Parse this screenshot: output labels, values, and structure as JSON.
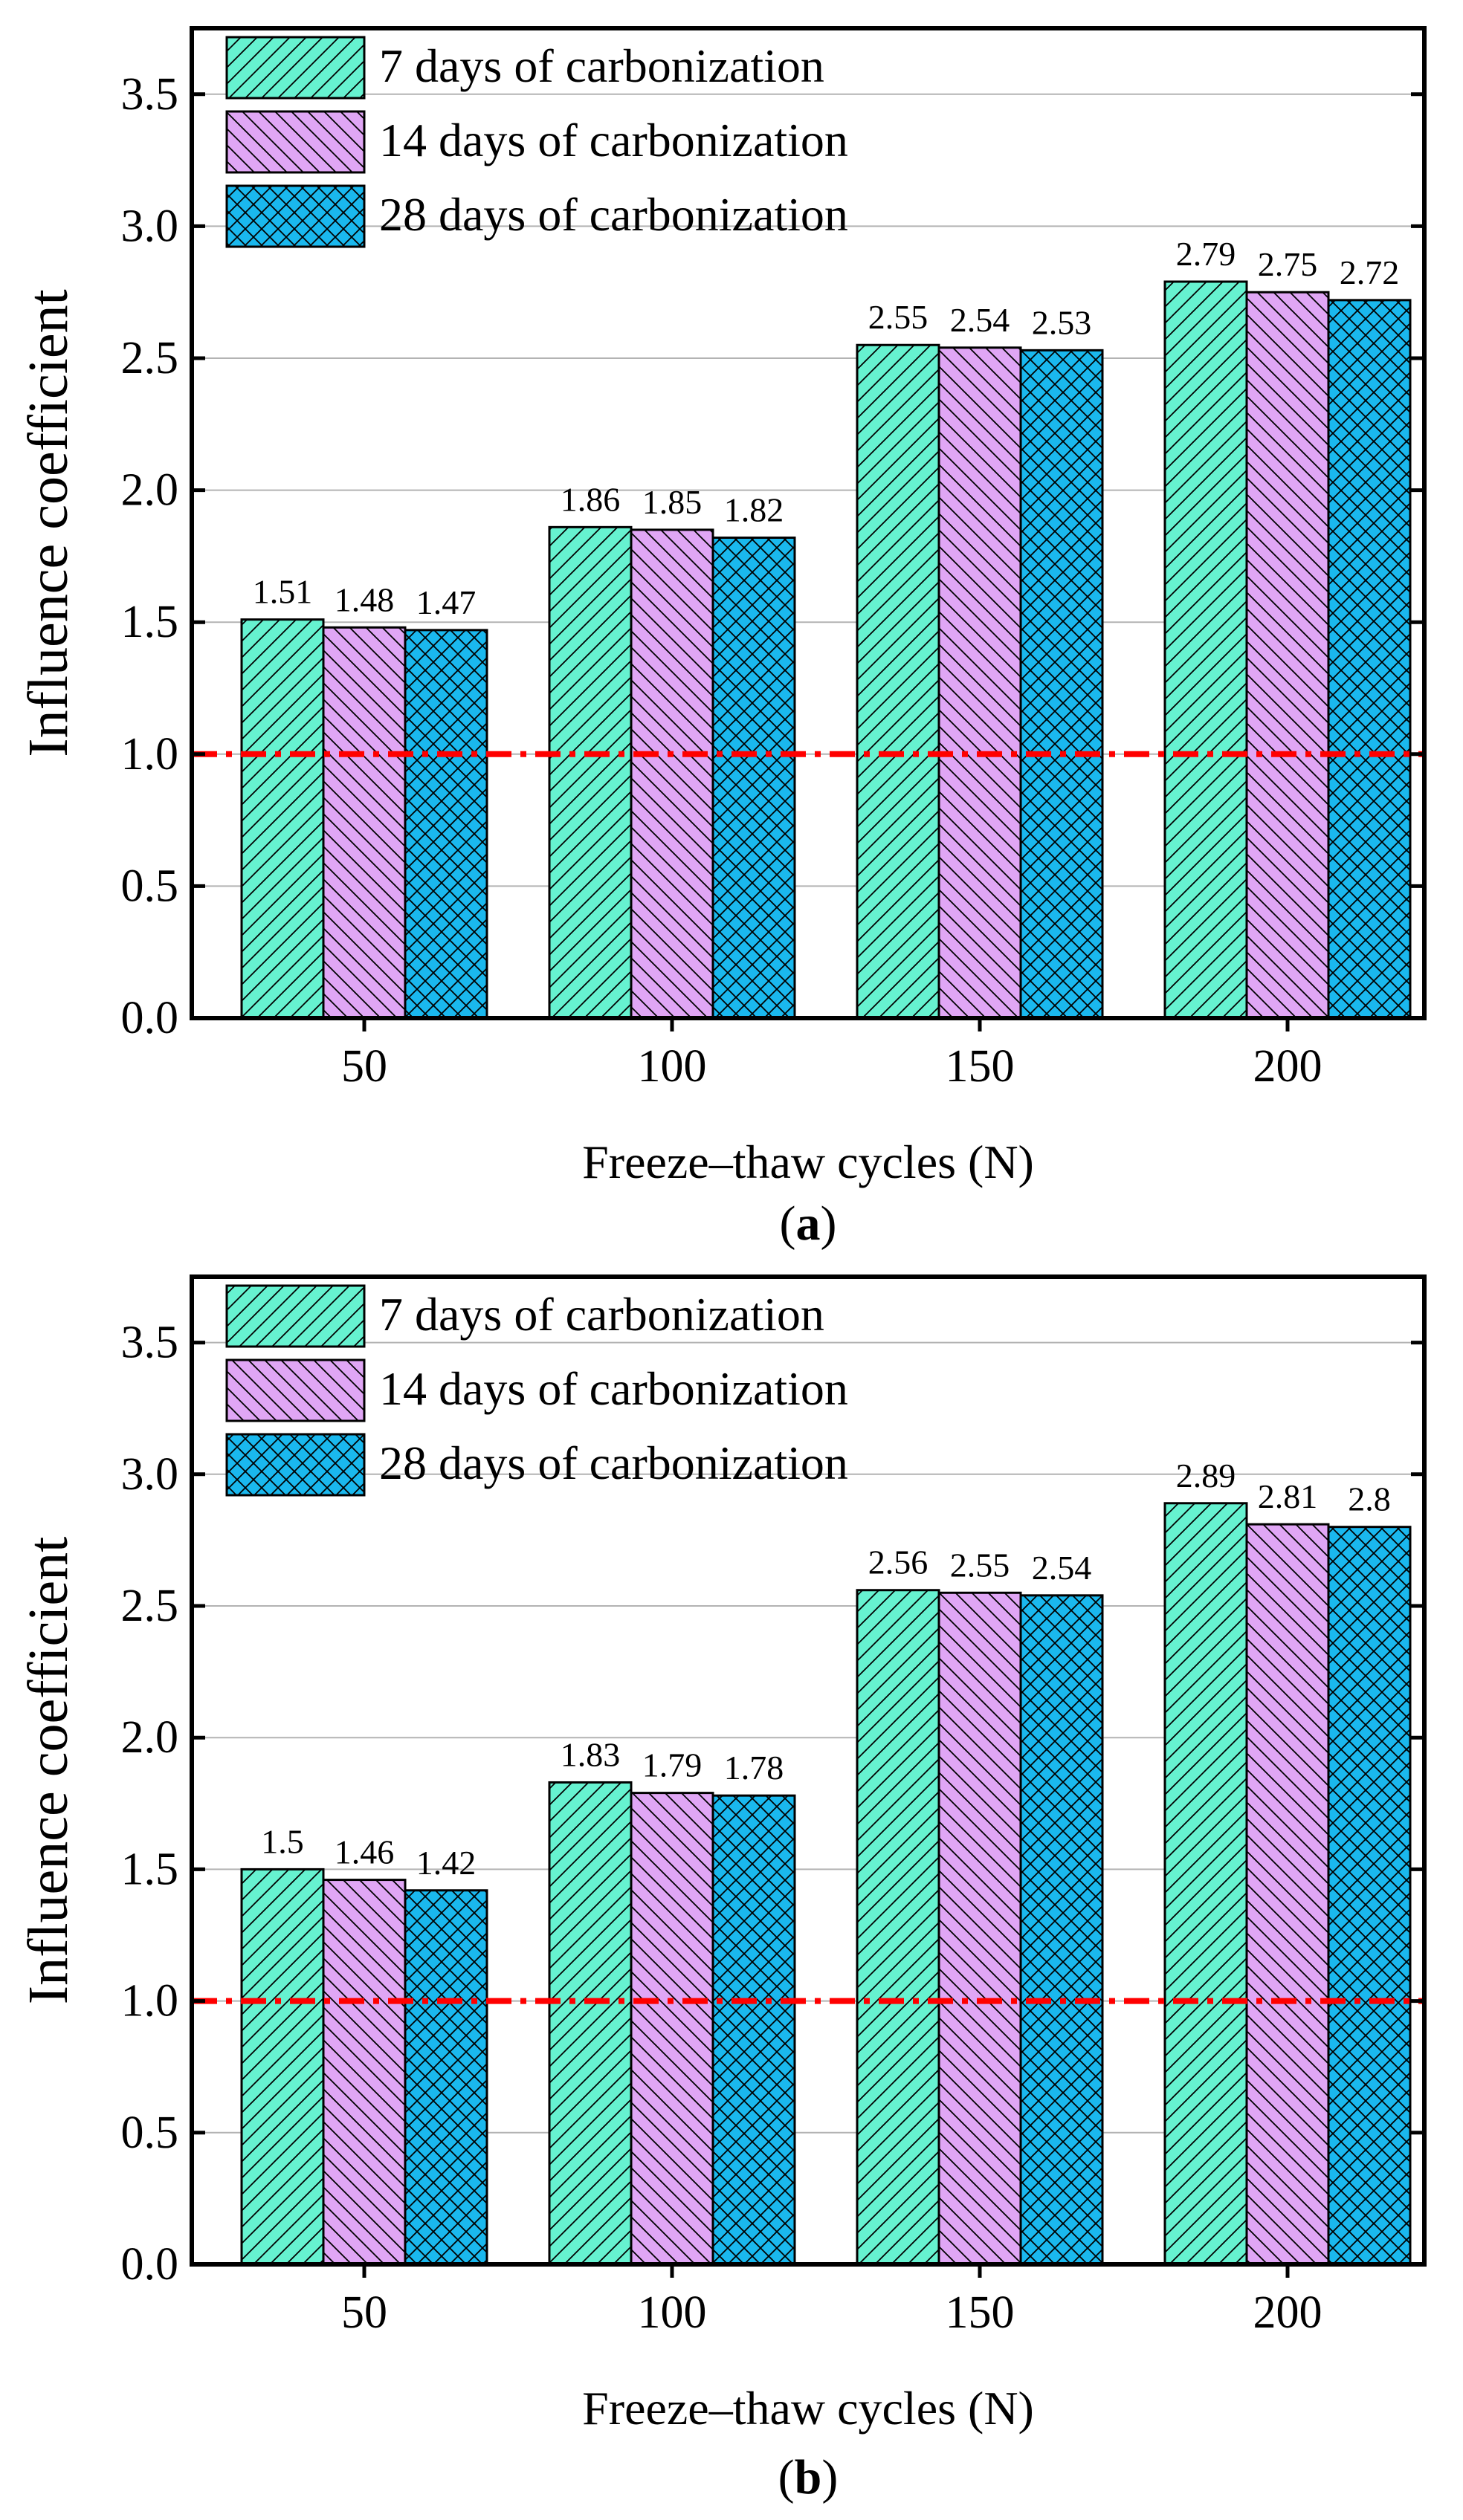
{
  "chart_data": [
    {
      "type": "bar",
      "panel_label": "a",
      "xlabel": "Freeze–thaw cycles (N)",
      "ylabel": "Influence coefficient",
      "categories": [
        "50",
        "100",
        "150",
        "200"
      ],
      "ylim": [
        0,
        3.75
      ],
      "yticks": [
        "0.0",
        "0.5",
        "1.0",
        "1.5",
        "2.0",
        "2.5",
        "3.0",
        "3.5"
      ],
      "grid": true,
      "legend_position": "top-left",
      "reference_line": {
        "value": 1.0,
        "style": "dash-dot",
        "color": "#ff0000"
      },
      "series": [
        {
          "name": "7 days of carbonization",
          "values": [
            1.51,
            1.86,
            2.55,
            2.79
          ],
          "labels": [
            "1.51",
            "1.86",
            "2.55",
            "2.79"
          ],
          "color": "#66f2d0",
          "pattern": "forward-hatch"
        },
        {
          "name": "14 days of carbonization",
          "values": [
            1.48,
            1.85,
            2.54,
            2.75
          ],
          "labels": [
            "1.48",
            "1.85",
            "2.54",
            "2.75"
          ],
          "color": "#e0a6f5",
          "pattern": "back-hatch"
        },
        {
          "name": "28 days of carbonization",
          "values": [
            1.47,
            1.82,
            2.53,
            2.72
          ],
          "labels": [
            "1.47",
            "1.82",
            "2.53",
            "2.72"
          ],
          "color": "#1ab8ee",
          "pattern": "cross-hatch"
        }
      ]
    },
    {
      "type": "bar",
      "panel_label": "b",
      "xlabel": "Freeze–thaw cycles (N)",
      "ylabel": "Influence coefficient",
      "categories": [
        "50",
        "100",
        "150",
        "200"
      ],
      "ylim": [
        0,
        3.75
      ],
      "yticks": [
        "0.0",
        "0.5",
        "1.0",
        "1.5",
        "2.0",
        "2.5",
        "3.0",
        "3.5"
      ],
      "grid": true,
      "legend_position": "top-left",
      "reference_line": {
        "value": 1.0,
        "style": "dash-dot",
        "color": "#ff0000"
      },
      "series": [
        {
          "name": "7 days of carbonization",
          "values": [
            1.5,
            1.83,
            2.56,
            2.89
          ],
          "labels": [
            "1.5",
            "1.83",
            "2.56",
            "2.89"
          ],
          "color": "#66f2d0",
          "pattern": "forward-hatch"
        },
        {
          "name": "14 days of carbonization",
          "values": [
            1.46,
            1.79,
            2.55,
            2.81
          ],
          "labels": [
            "1.46",
            "1.79",
            "2.55",
            "2.81"
          ],
          "color": "#e0a6f5",
          "pattern": "back-hatch"
        },
        {
          "name": "28 days of carbonization",
          "values": [
            1.42,
            1.78,
            2.54,
            2.8
          ],
          "labels": [
            "1.42",
            "1.78",
            "2.54",
            "2.8"
          ],
          "color": "#1ab8ee",
          "pattern": "cross-hatch"
        }
      ]
    }
  ]
}
